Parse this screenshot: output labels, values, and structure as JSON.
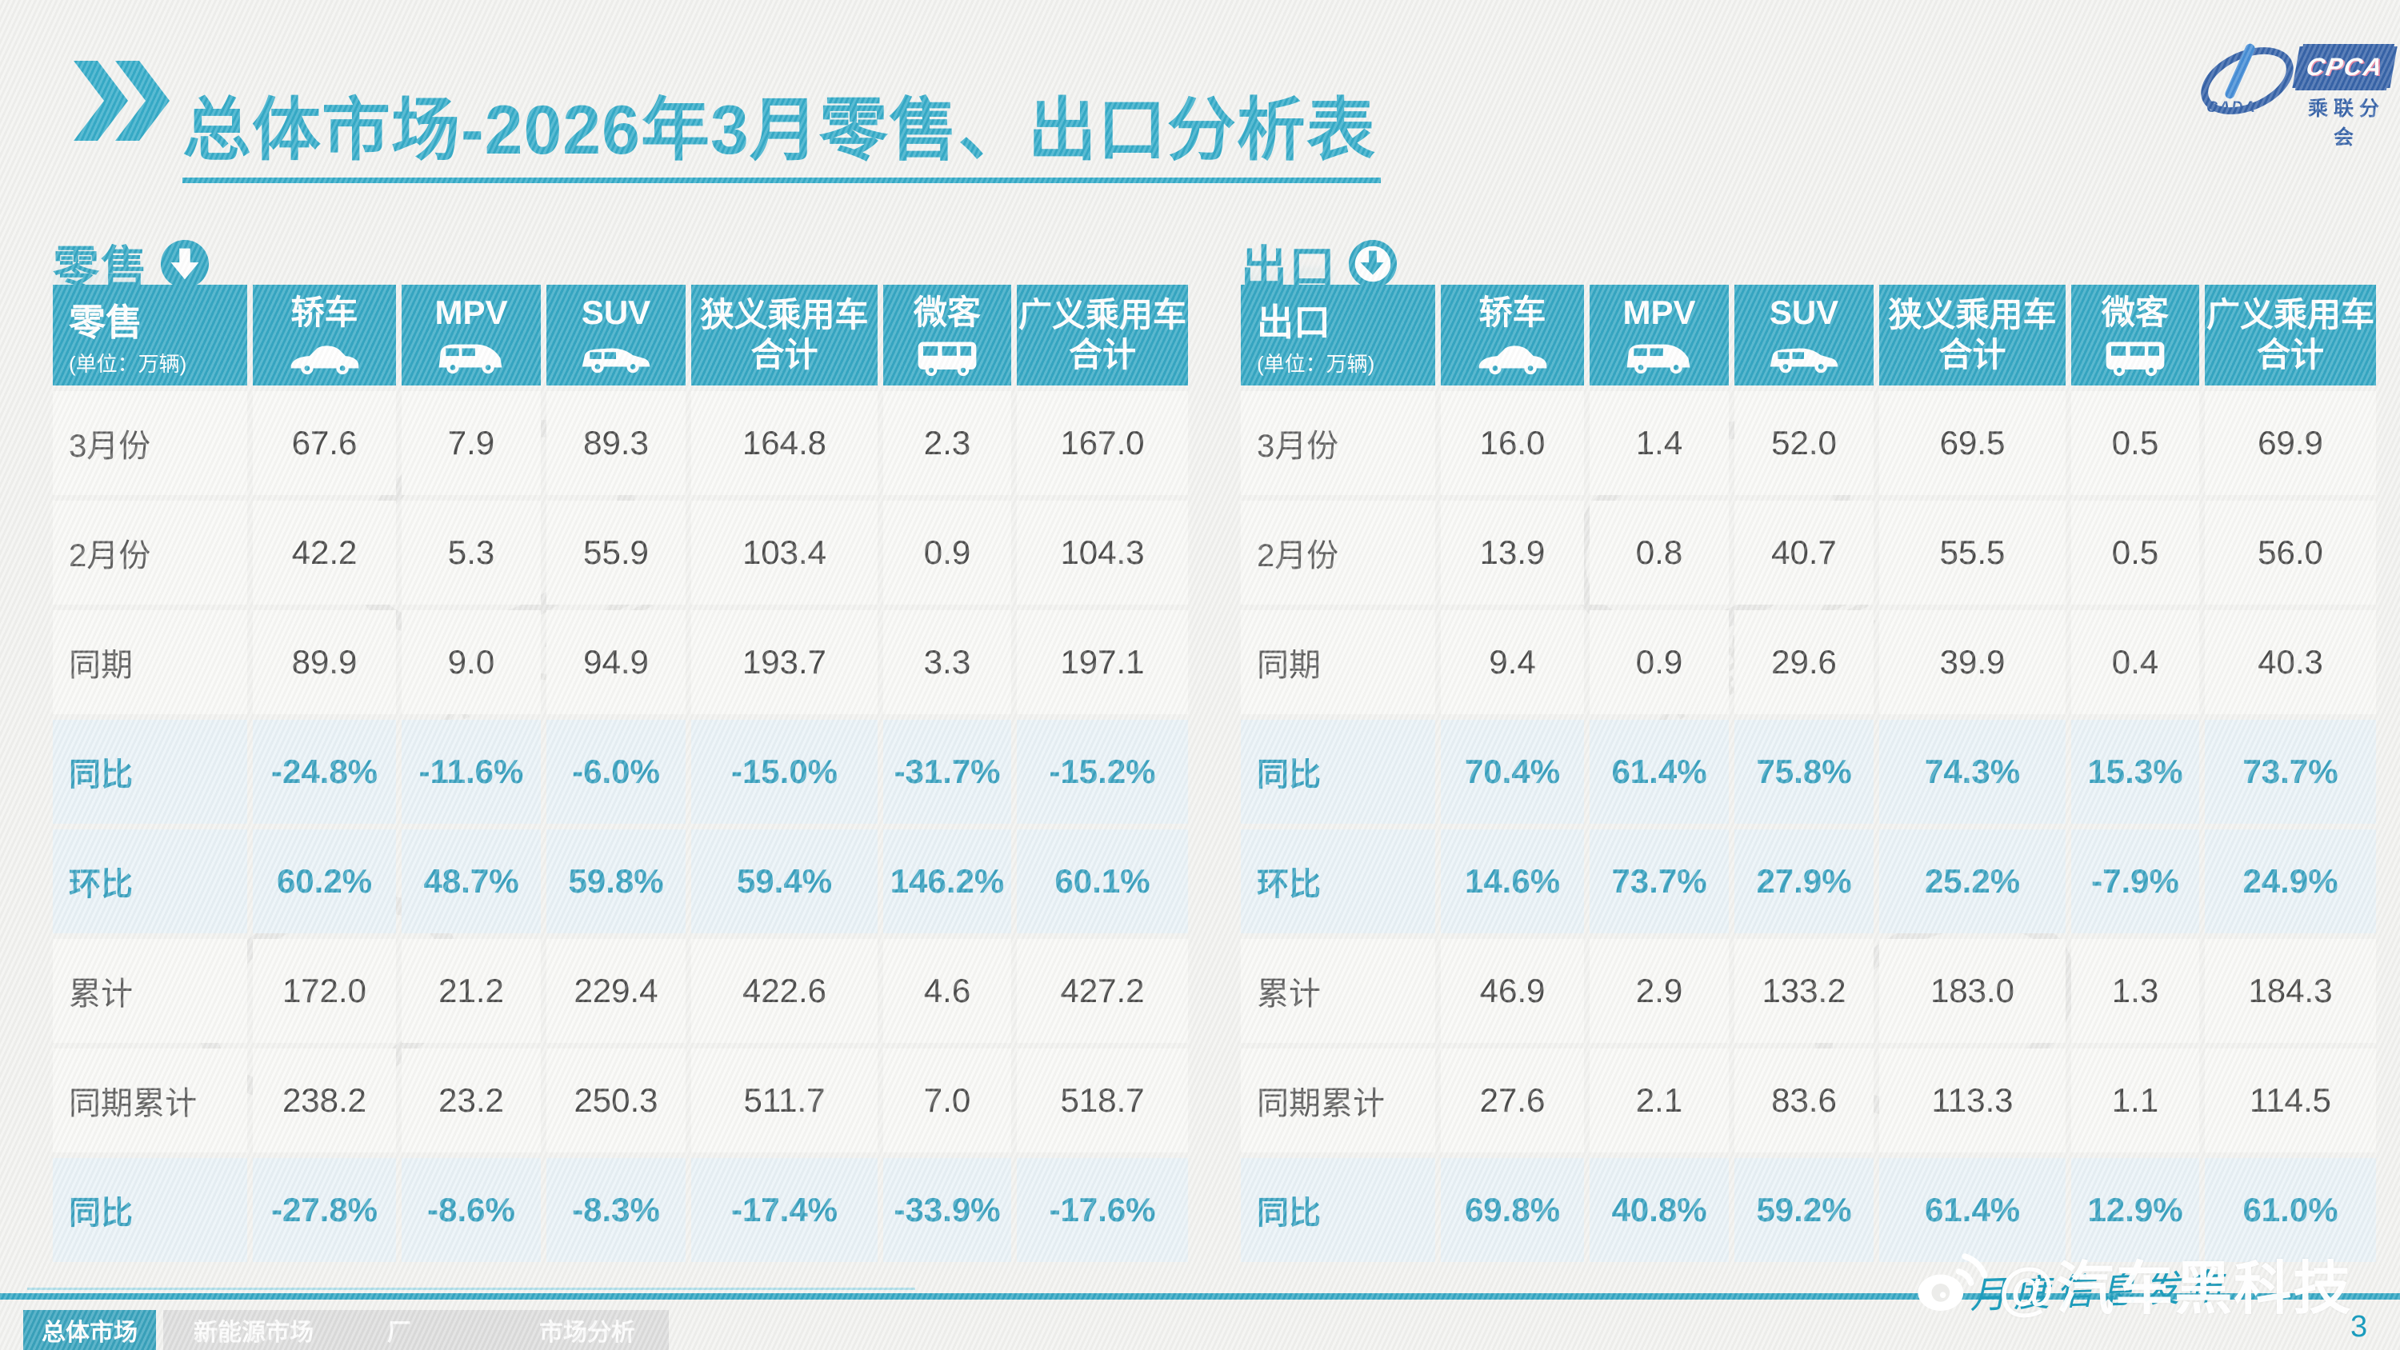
{
  "accent_color": "#1b9cbd",
  "logo_blue": "#1d4f9e",
  "title": "总体市场-2026年3月零售、出口分析表",
  "logo": {
    "cpca": "CPCA",
    "cada": "CADA",
    "branch": "乘联分会"
  },
  "tables": [
    {
      "section_label": "零售",
      "header_label": "零售",
      "unit": "(单位：万辆)",
      "columns": [
        {
          "label": "轿车",
          "icon": "sedan-icon"
        },
        {
          "label": "MPV",
          "icon": "mpv-icon"
        },
        {
          "label": "SUV",
          "icon": "suv-icon"
        },
        {
          "label": "狭义乘用车",
          "label2": "合计"
        },
        {
          "label": "微客",
          "icon": "van-icon"
        },
        {
          "label": "广义乘用车",
          "label2": "合计"
        }
      ],
      "rows": [
        {
          "label": "3月份",
          "highlight": false,
          "values": [
            "67.6",
            "7.9",
            "89.3",
            "164.8",
            "2.3",
            "167.0"
          ]
        },
        {
          "label": "2月份",
          "highlight": false,
          "values": [
            "42.2",
            "5.3",
            "55.9",
            "103.4",
            "0.9",
            "104.3"
          ]
        },
        {
          "label": "同期",
          "highlight": false,
          "values": [
            "89.9",
            "9.0",
            "94.9",
            "193.7",
            "3.3",
            "197.1"
          ]
        },
        {
          "label": "同比",
          "highlight": true,
          "values": [
            "-24.8%",
            "-11.6%",
            "-6.0%",
            "-15.0%",
            "-31.7%",
            "-15.2%"
          ]
        },
        {
          "label": "环比",
          "highlight": true,
          "values": [
            "60.2%",
            "48.7%",
            "59.8%",
            "59.4%",
            "146.2%",
            "60.1%"
          ]
        },
        {
          "label": "累计",
          "highlight": false,
          "values": [
            "172.0",
            "21.2",
            "229.4",
            "422.6",
            "4.6",
            "427.2"
          ]
        },
        {
          "label": "同期累计",
          "highlight": false,
          "values": [
            "238.2",
            "23.2",
            "250.3",
            "511.7",
            "7.0",
            "518.7"
          ]
        },
        {
          "label": "同比",
          "highlight": true,
          "values": [
            "-27.8%",
            "-8.6%",
            "-8.3%",
            "-17.4%",
            "-33.9%",
            "-17.6%"
          ]
        }
      ]
    },
    {
      "section_label": "出口",
      "header_label": "出口",
      "unit": "(单位：万辆)",
      "columns": [
        {
          "label": "轿车",
          "icon": "sedan-icon"
        },
        {
          "label": "MPV",
          "icon": "mpv-icon"
        },
        {
          "label": "SUV",
          "icon": "suv-icon"
        },
        {
          "label": "狭义乘用车",
          "label2": "合计"
        },
        {
          "label": "微客",
          "icon": "van-icon"
        },
        {
          "label": "广义乘用车",
          "label2": "合计"
        }
      ],
      "rows": [
        {
          "label": "3月份",
          "highlight": false,
          "values": [
            "16.0",
            "1.4",
            "52.0",
            "69.5",
            "0.5",
            "69.9"
          ]
        },
        {
          "label": "2月份",
          "highlight": false,
          "values": [
            "13.9",
            "0.8",
            "40.7",
            "55.5",
            "0.5",
            "56.0"
          ]
        },
        {
          "label": "同期",
          "highlight": false,
          "values": [
            "9.4",
            "0.9",
            "29.6",
            "39.9",
            "0.4",
            "40.3"
          ]
        },
        {
          "label": "同比",
          "highlight": true,
          "values": [
            "70.4%",
            "61.4%",
            "75.8%",
            "74.3%",
            "15.3%",
            "73.7%"
          ]
        },
        {
          "label": "环比",
          "highlight": true,
          "values": [
            "14.6%",
            "73.7%",
            "27.9%",
            "25.2%",
            "-7.9%",
            "24.9%"
          ]
        },
        {
          "label": "累计",
          "highlight": false,
          "values": [
            "46.9",
            "2.9",
            "133.2",
            "183.0",
            "1.3",
            "184.3"
          ]
        },
        {
          "label": "同期累计",
          "highlight": false,
          "values": [
            "27.6",
            "2.1",
            "83.6",
            "113.3",
            "1.1",
            "114.5"
          ]
        },
        {
          "label": "同比",
          "highlight": true,
          "values": [
            "69.8%",
            "40.8%",
            "59.2%",
            "61.4%",
            "12.9%",
            "61.0%"
          ]
        }
      ]
    }
  ],
  "footer": {
    "tabs": [
      {
        "label": "总体市场",
        "active": true
      },
      {
        "label": "新能源市场",
        "active": false
      },
      {
        "label": "厂",
        "active": false
      },
      {
        "label": "市场分析",
        "active": false
      }
    ],
    "script_note": "月度信息发布",
    "watermark": "@汽车黑科技",
    "page_number": "3"
  }
}
